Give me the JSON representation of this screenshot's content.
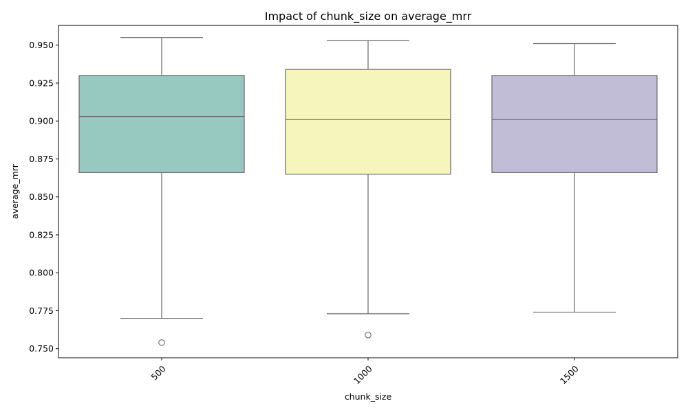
{
  "chart_data": {
    "type": "box",
    "title": "Impact of chunk_size on average_mrr",
    "xlabel": "chunk_size",
    "ylabel": "average_mrr",
    "ylim": [
      0.744,
      0.963
    ],
    "yticks": [
      "0.750",
      "0.775",
      "0.800",
      "0.825",
      "0.850",
      "0.875",
      "0.900",
      "0.925",
      "0.950"
    ],
    "grid": false,
    "legend": "none",
    "boxes": [
      {
        "category": "500",
        "whisker_low": 0.77,
        "q1": 0.866,
        "median": 0.903,
        "q3": 0.93,
        "whisker_high": 0.955,
        "outliers": [
          0.754
        ],
        "color": "#97c9c0"
      },
      {
        "category": "1000",
        "whisker_low": 0.773,
        "q1": 0.865,
        "median": 0.901,
        "q3": 0.934,
        "whisker_high": 0.953,
        "outliers": [
          0.759
        ],
        "color": "#f6f6bc"
      },
      {
        "category": "1500",
        "whisker_low": 0.774,
        "q1": 0.866,
        "median": 0.901,
        "q3": 0.93,
        "whisker_high": 0.951,
        "outliers": [],
        "color": "#c1bdd7"
      }
    ],
    "line_color": "#666666"
  }
}
